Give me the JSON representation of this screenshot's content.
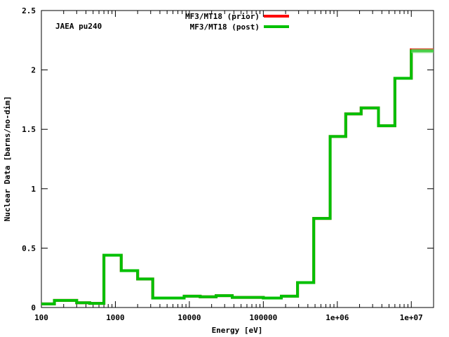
{
  "chart_data": {
    "type": "line",
    "step": true,
    "title": "",
    "xlabel": "Energy [eV]",
    "ylabel": "Nuclear Data [barns/no-dim]",
    "xscale": "log",
    "xlim": [
      100,
      20000000
    ],
    "ylim": [
      0,
      2.5
    ],
    "grid": false,
    "legend_position": "top-center",
    "annotation": "JAEA pu240",
    "x_ticks": [
      {
        "value": 100,
        "label": "100"
      },
      {
        "value": 1000,
        "label": "1000"
      },
      {
        "value": 10000,
        "label": "10000"
      },
      {
        "value": 100000,
        "label": "100000"
      },
      {
        "value": 1000000,
        "label": "1e+06"
      },
      {
        "value": 10000000,
        "label": "1e+07"
      }
    ],
    "y_ticks": [
      {
        "value": 0,
        "label": "0"
      },
      {
        "value": 0.5,
        "label": "0.5"
      },
      {
        "value": 1,
        "label": "1"
      },
      {
        "value": 1.5,
        "label": "1.5"
      },
      {
        "value": 2,
        "label": "2"
      },
      {
        "value": 2.5,
        "label": "2.5"
      }
    ],
    "bin_edges": [
      100,
      150,
      300,
      450,
      700,
      1200,
      2000,
      3200,
      8500,
      14000,
      23000,
      38000,
      100000,
      175000,
      290000,
      480000,
      800000,
      1300000,
      2100000,
      3600000,
      6000000,
      10000000,
      20000000
    ],
    "series": [
      {
        "name": "MF3/MT18 (prior)",
        "color": "#ff0000",
        "values": [
          0.03,
          0.06,
          0.04,
          0.035,
          0.44,
          0.31,
          0.24,
          0.08,
          0.095,
          0.09,
          0.1,
          0.085,
          0.08,
          0.095,
          0.21,
          0.75,
          1.44,
          1.63,
          1.68,
          1.53,
          1.93,
          2.17
        ]
      },
      {
        "name": "MF3/MT18 (post)",
        "color": "#00c000",
        "values": [
          0.03,
          0.06,
          0.04,
          0.035,
          0.44,
          0.31,
          0.24,
          0.08,
          0.095,
          0.09,
          0.1,
          0.085,
          0.08,
          0.095,
          0.21,
          0.75,
          1.44,
          1.63,
          1.68,
          1.53,
          1.93,
          2.16
        ]
      }
    ]
  }
}
